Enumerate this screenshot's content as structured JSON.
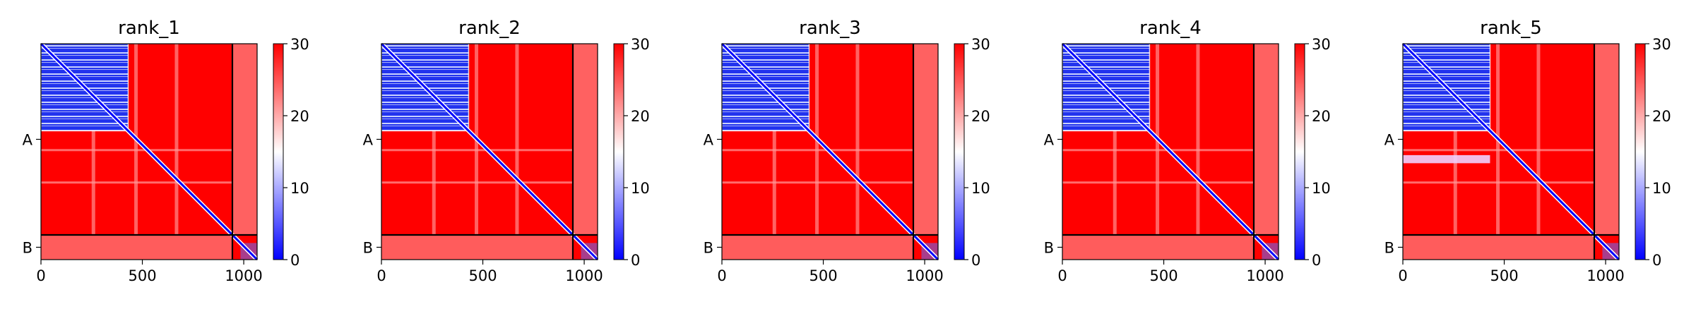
{
  "chart_data": [
    {
      "type": "heatmap",
      "title": "rank_1",
      "xlim": [
        0,
        1066
      ],
      "x_ticks": [
        0,
        500,
        1000
      ],
      "chains": [
        "A",
        "B"
      ],
      "chain_boundary": 944,
      "colorbar": {
        "min": 0,
        "max": 30,
        "ticks": [
          0,
          10,
          20,
          30
        ],
        "colormap": "bwr"
      },
      "low_error_block": {
        "start": 0,
        "end": 430
      },
      "secondary_block": null
    },
    {
      "type": "heatmap",
      "title": "rank_2",
      "xlim": [
        0,
        1066
      ],
      "x_ticks": [
        0,
        500,
        1000
      ],
      "chains": [
        "A",
        "B"
      ],
      "chain_boundary": 944,
      "colorbar": {
        "min": 0,
        "max": 30,
        "ticks": [
          0,
          10,
          20,
          30
        ],
        "colormap": "bwr"
      },
      "low_error_block": {
        "start": 0,
        "end": 430
      },
      "secondary_block": null
    },
    {
      "type": "heatmap",
      "title": "rank_3",
      "xlim": [
        0,
        1066
      ],
      "x_ticks": [
        0,
        500,
        1000
      ],
      "chains": [
        "A",
        "B"
      ],
      "chain_boundary": 944,
      "colorbar": {
        "min": 0,
        "max": 30,
        "ticks": [
          0,
          10,
          20,
          30
        ],
        "colormap": "bwr"
      },
      "low_error_block": {
        "start": 0,
        "end": 430
      },
      "secondary_block": null
    },
    {
      "type": "heatmap",
      "title": "rank_4",
      "xlim": [
        0,
        1066
      ],
      "x_ticks": [
        0,
        500,
        1000
      ],
      "chains": [
        "A",
        "B"
      ],
      "chain_boundary": 944,
      "colorbar": {
        "min": 0,
        "max": 30,
        "ticks": [
          0,
          10,
          20,
          30
        ],
        "colormap": "bwr"
      },
      "low_error_block": {
        "start": 0,
        "end": 430
      },
      "secondary_block": null
    },
    {
      "type": "heatmap",
      "title": "rank_5",
      "xlim": [
        0,
        1066
      ],
      "x_ticks": [
        0,
        500,
        1000
      ],
      "chains": [
        "A",
        "B"
      ],
      "chain_boundary": 944,
      "colorbar": {
        "min": 0,
        "max": 30,
        "ticks": [
          0,
          10,
          20,
          30
        ],
        "colormap": "bwr"
      },
      "low_error_block": {
        "start": 0,
        "end": 430
      },
      "secondary_block": {
        "rows": [
          550,
          590
        ],
        "cols": [
          0,
          430
        ]
      }
    }
  ]
}
